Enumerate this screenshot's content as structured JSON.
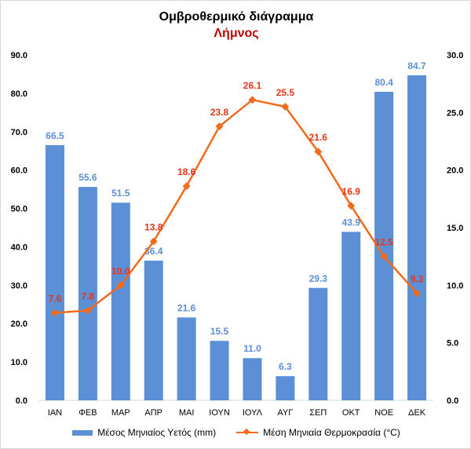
{
  "chart_data": {
    "type": "bar+line",
    "title": "Ομβροθερμικό διάγραμμα",
    "subtitle": "Λήμνος",
    "categories": [
      "ΙΑΝ",
      "ΦΕΒ",
      "ΜΑΡ",
      "ΑΠΡ",
      "ΜΑΙ",
      "ΙΟΥΝ",
      "ΙΟΥΛ",
      "ΑΥΓ",
      "ΣΕΠ",
      "ΟΚΤ",
      "ΝΟΕ",
      "ΔΕΚ"
    ],
    "series": [
      {
        "name": "Μέσος Μηνιαίος Υετός (mm)",
        "type": "bar",
        "axis": "left",
        "color": "#5b8fd6",
        "label_color": "#5b8fd6",
        "values": [
          66.5,
          55.6,
          51.5,
          36.4,
          21.6,
          15.5,
          11.0,
          6.3,
          29.3,
          43.9,
          80.4,
          84.7
        ]
      },
      {
        "name": "Μέση Μηνιαία Θερμοκρασία (°C)",
        "type": "line",
        "axis": "right",
        "color": "#f26b1d",
        "label_color": "#e8351a",
        "values": [
          7.6,
          7.8,
          10.0,
          13.8,
          18.6,
          23.8,
          26.1,
          25.5,
          21.6,
          16.9,
          12.5,
          9.3
        ]
      }
    ],
    "y_left": {
      "min": 0,
      "max": 90,
      "ticks": [
        "0.0",
        "10.0",
        "20.0",
        "30.0",
        "40.0",
        "50.0",
        "60.0",
        "70.0",
        "80.0",
        "90.0"
      ]
    },
    "y_right": {
      "min": 0,
      "max": 30,
      "ticks": [
        "0.0",
        "5.0",
        "10.0",
        "15.0",
        "20.0",
        "25.0",
        "30.0"
      ]
    },
    "legend_position": "bottom",
    "grid": false
  }
}
